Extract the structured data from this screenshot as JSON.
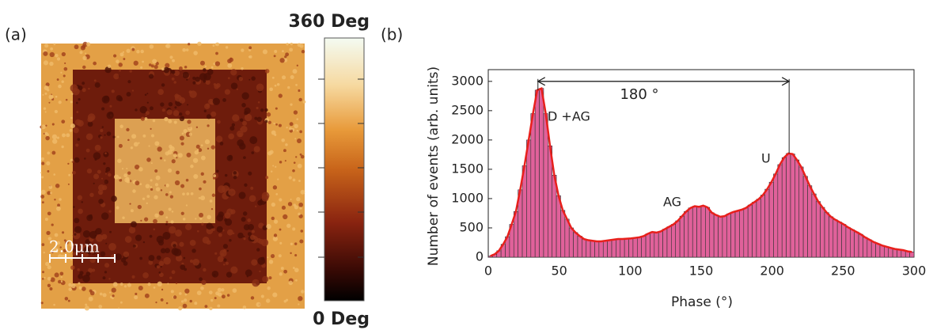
{
  "panel_a": {
    "label": "(a)",
    "colorbar_max": "360 Deg",
    "colorbar_min": "0 Deg",
    "scale_bar": "2.0μm"
  },
  "chart_data": {
    "type": "histogram",
    "panel_label": "(b)",
    "x_label": "Phase (°)",
    "y_label": "Number of events (arb. units)",
    "bins": [
      0,
      3,
      6,
      9,
      12,
      15,
      18,
      21,
      24,
      27,
      30,
      33,
      36,
      39,
      42,
      45,
      48,
      51,
      54,
      57,
      60,
      63,
      66,
      69,
      72,
      75,
      78,
      81,
      84,
      87,
      90,
      93,
      96,
      99,
      102,
      105,
      108,
      111,
      114,
      117,
      120,
      123,
      126,
      129,
      132,
      135,
      138,
      141,
      144,
      147,
      150,
      153,
      156,
      159,
      162,
      165,
      168,
      171,
      174,
      177,
      180,
      183,
      186,
      189,
      192,
      195,
      198,
      201,
      204,
      207,
      210,
      213,
      216,
      219,
      222,
      225,
      228,
      231,
      234,
      237,
      240,
      243,
      246,
      249,
      252,
      255,
      258,
      261,
      264,
      267,
      270,
      273,
      276,
      279,
      282,
      285,
      288,
      291,
      294,
      297,
      300
    ],
    "counts": [
      20,
      50,
      110,
      220,
      350,
      560,
      780,
      1150,
      1560,
      2000,
      2450,
      2850,
      2880,
      2450,
      1900,
      1400,
      1050,
      800,
      650,
      500,
      420,
      360,
      310,
      290,
      280,
      270,
      270,
      280,
      290,
      300,
      310,
      310,
      315,
      320,
      330,
      340,
      360,
      400,
      430,
      420,
      440,
      480,
      520,
      560,
      620,
      700,
      780,
      840,
      870,
      860,
      880,
      850,
      760,
      720,
      690,
      700,
      740,
      770,
      790,
      810,
      840,
      890,
      940,
      990,
      1060,
      1160,
      1280,
      1420,
      1580,
      1700,
      1770,
      1760,
      1660,
      1540,
      1380,
      1220,
      1080,
      950,
      850,
      760,
      690,
      640,
      600,
      560,
      510,
      470,
      430,
      390,
      340,
      300,
      260,
      230,
      200,
      180,
      160,
      140,
      130,
      120,
      100,
      90
    ],
    "bar_color": "#e0619a",
    "line_color": "#e8201c",
    "xlim": [
      0,
      300
    ],
    "xticks": [
      0,
      50,
      100,
      150,
      200,
      250,
      300
    ],
    "ylim": [
      0,
      3200
    ],
    "yticks": [
      0,
      500,
      1000,
      1500,
      2000,
      2500,
      3000
    ],
    "arrow": {
      "x": [
        35,
        212
      ],
      "y": 3000,
      "label": "180 °"
    },
    "annotations": [
      "D +AG",
      "AG",
      "U"
    ]
  }
}
